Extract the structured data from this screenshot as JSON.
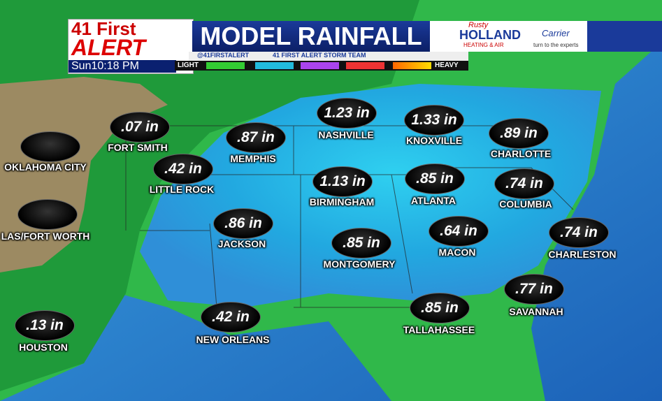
{
  "header": {
    "brand_top": "41 First",
    "brand_bottom": "ALERT",
    "time": "Sun10:18 PM",
    "title": "MODEL RAINFALL",
    "twitter": "@41FIRSTALERT",
    "facebook": "41 FIRST ALERT STORM TEAM",
    "legend_low": "LIGHT",
    "legend_high": "HEAVY"
  },
  "sponsors": {
    "name_script": "Rusty",
    "name": "HOLLAND",
    "tagline": "HEATING & AIR",
    "partner": "Carrier",
    "partner_tagline": "turn to the experts"
  },
  "cities": [
    {
      "name": "OKLAHOMA CITY",
      "amount": null
    },
    {
      "name": "LAS/FORT WORTH",
      "amount": null
    },
    {
      "name": "FORT SMITH",
      "amount": ".07 in"
    },
    {
      "name": "LITTLE ROCK",
      "amount": ".42 in"
    },
    {
      "name": "MEMPHIS",
      "amount": ".87 in"
    },
    {
      "name": "JACKSON",
      "amount": ".86 in"
    },
    {
      "name": "NASHVILLE",
      "amount": "1.23 in"
    },
    {
      "name": "KNOXVILLE",
      "amount": "1.33 in"
    },
    {
      "name": "CHARLOTTE",
      "amount": ".89 in"
    },
    {
      "name": "BIRMINGHAM",
      "amount": "1.13 in"
    },
    {
      "name": "ATLANTA",
      "amount": ".85 in"
    },
    {
      "name": "COLUMBIA",
      "amount": ".74 in"
    },
    {
      "name": "MONTGOMERY",
      "amount": ".85 in"
    },
    {
      "name": "MACON",
      "amount": ".64 in"
    },
    {
      "name": "CHARLESTON",
      "amount": ".74 in"
    },
    {
      "name": "SAVANNAH",
      "amount": ".77 in"
    },
    {
      "name": "TALLAHASSEE",
      "amount": ".85 in"
    },
    {
      "name": "NEW ORLEANS",
      "amount": ".42 in"
    },
    {
      "name": "HOUSTON",
      "amount": ".13 in"
    }
  ]
}
